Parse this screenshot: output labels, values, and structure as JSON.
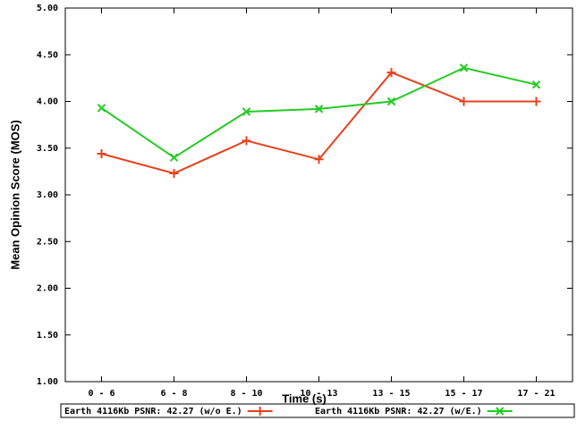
{
  "chart_data": {
    "type": "line",
    "x_label": "Time (s)",
    "y_label": "Mean Opinion Score (MOS)",
    "categories": [
      "0 - 6",
      "6 - 8",
      "8 - 10",
      "10 - 13",
      "13 - 15",
      "15 - 17",
      "17 - 21"
    ],
    "series": [
      {
        "name": "Earth 4116Kb PSNR: 42.27 (w/o E.)",
        "color": "#e8401c",
        "marker": "plus",
        "values": [
          3.44,
          3.23,
          3.58,
          3.38,
          4.31,
          4.0,
          4.0
        ]
      },
      {
        "name": "Earth 4116Kb PSNR: 42.27 (w/E.)",
        "color": "#22cc22",
        "marker": "cross",
        "values": [
          3.93,
          3.4,
          3.89,
          3.92,
          4.0,
          4.36,
          4.18
        ]
      }
    ],
    "ylim": [
      1,
      5
    ],
    "yticks": [
      {
        "value": 1,
        "label": "1.00"
      },
      {
        "value": 1.5,
        "label": "1.50"
      },
      {
        "value": 2,
        "label": "2.00"
      },
      {
        "value": 2.5,
        "label": "2.50"
      },
      {
        "value": 3,
        "label": "3.00"
      },
      {
        "value": 3.5,
        "label": "3.50"
      },
      {
        "value": 4,
        "label": "4.00"
      },
      {
        "value": 4.5,
        "label": "4.50"
      },
      {
        "value": 5,
        "label": "5.00"
      }
    ],
    "legend": "bottom"
  }
}
